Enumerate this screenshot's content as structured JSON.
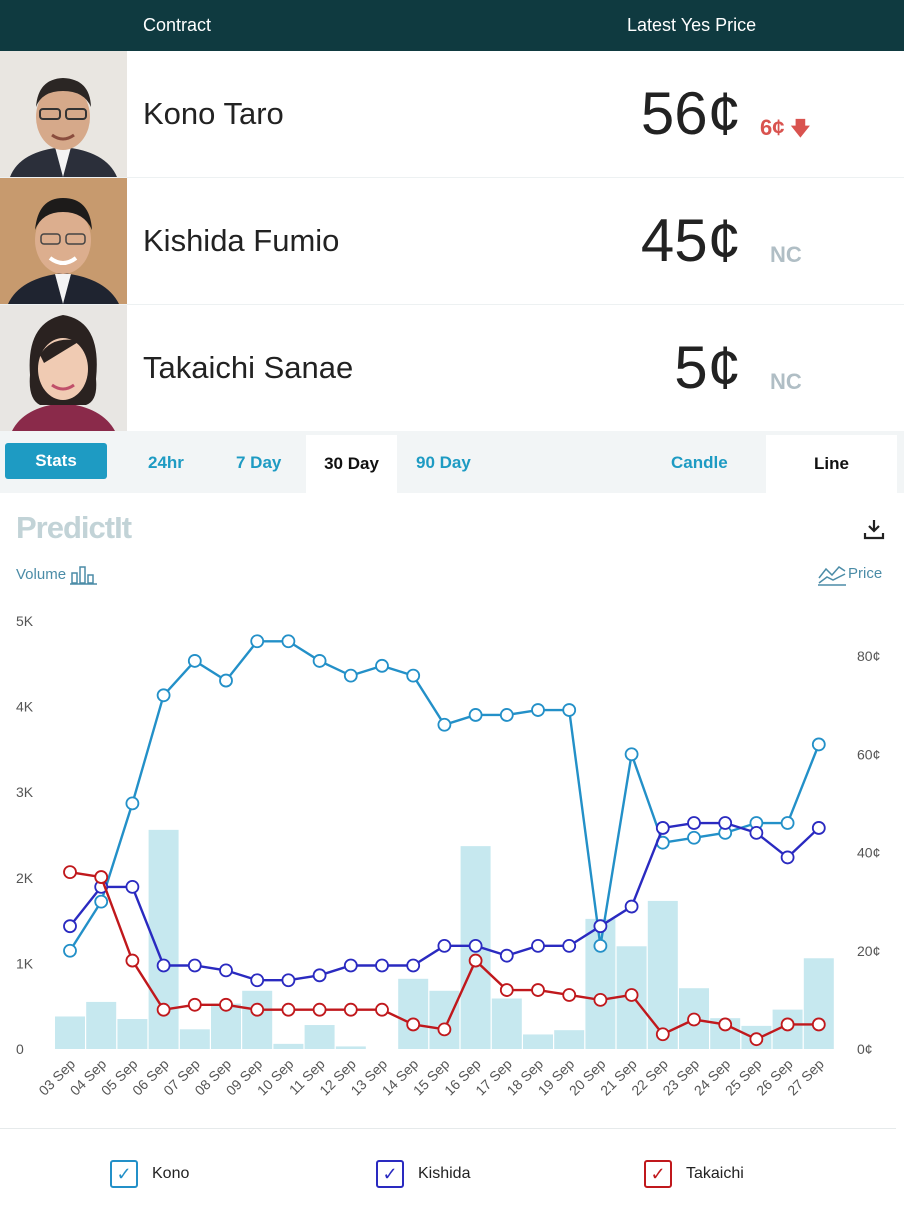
{
  "header": {
    "contract": "Contract",
    "latest_price": "Latest Yes Price"
  },
  "contracts": [
    {
      "name": "Kono Taro",
      "price": "56¢",
      "change": "6¢",
      "change_dir": "down",
      "line_color": "#2390c8"
    },
    {
      "name": "Kishida Fumio",
      "price": "45¢",
      "change": "NC",
      "change_dir": "none",
      "line_color": "#2a2ac0"
    },
    {
      "name": "Takaichi Sanae",
      "price": "5¢",
      "change": "NC",
      "change_dir": "none",
      "line_color": "#c0181c"
    }
  ],
  "tabs": {
    "stats": "Stats",
    "range": [
      "24hr",
      "7 Day",
      "30 Day",
      "90 Day"
    ],
    "active_range": "30 Day",
    "type": [
      "Candle",
      "Line"
    ],
    "active_type": "Line"
  },
  "brand": "PredictIt",
  "labels": {
    "volume": "Volume",
    "price": "Price"
  },
  "icons": {
    "download": "download-icon",
    "volume": "bar-chart-icon",
    "price": "line-chart-icon",
    "check": "check-icon"
  },
  "chart_data": {
    "type": "line",
    "categories": [
      "03 Sep",
      "04 Sep",
      "05 Sep",
      "06 Sep",
      "07 Sep",
      "08 Sep",
      "09 Sep",
      "10 Sep",
      "11 Sep",
      "12 Sep",
      "13 Sep",
      "14 Sep",
      "15 Sep",
      "16 Sep",
      "17 Sep",
      "18 Sep",
      "19 Sep",
      "20 Sep",
      "21 Sep",
      "22 Sep",
      "23 Sep",
      "24 Sep",
      "25 Sep",
      "26 Sep",
      "27 Sep"
    ],
    "volume_axis": {
      "ticks": [
        "0",
        "1K",
        "2K",
        "3K",
        "4K",
        "5K"
      ],
      "ylim": [
        0,
        5000
      ]
    },
    "price_axis": {
      "ticks": [
        "0¢",
        "20¢",
        "40¢",
        "60¢",
        "80¢"
      ],
      "ylim": [
        0,
        87
      ]
    },
    "volume": [
      380,
      550,
      350,
      2560,
      230,
      530,
      680,
      60,
      280,
      30,
      0,
      820,
      680,
      2370,
      590,
      170,
      220,
      1520,
      1200,
      1730,
      710,
      360,
      270,
      460,
      1060
    ],
    "series": [
      {
        "name": "Kono",
        "color": "#2390c8",
        "values": [
          20,
          30,
          50,
          72,
          79,
          75,
          83,
          83,
          79,
          76,
          78,
          76,
          66,
          68,
          68,
          69,
          69,
          21,
          60,
          42,
          43,
          44,
          46,
          46,
          62
        ]
      },
      {
        "name": "Kishida",
        "color": "#2a2ac0",
        "values": [
          25,
          33,
          33,
          17,
          17,
          16,
          14,
          14,
          15,
          17,
          17,
          17,
          21,
          21,
          19,
          21,
          21,
          25,
          29,
          45,
          46,
          46,
          44,
          39,
          45
        ]
      },
      {
        "name": "Takaichi",
        "color": "#c0181c",
        "values": [
          36,
          35,
          18,
          8,
          9,
          9,
          8,
          8,
          8,
          8,
          8,
          5,
          4,
          18,
          12,
          12,
          11,
          10,
          11,
          3,
          6,
          5,
          2,
          5,
          5
        ]
      }
    ],
    "legend": [
      "Kono",
      "Kishida",
      "Takaichi"
    ],
    "grid": false
  }
}
